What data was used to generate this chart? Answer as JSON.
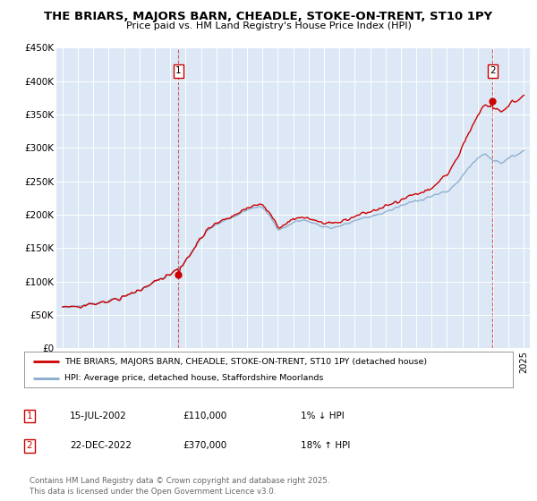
{
  "title_line1": "THE BRIARS, MAJORS BARN, CHEADLE, STOKE-ON-TRENT, ST10 1PY",
  "title_line2": "Price paid vs. HM Land Registry's House Price Index (HPI)",
  "bg_color": "#dce8f5",
  "sale1_x": 2002.542,
  "sale1_price": 110000,
  "sale2_x": 2022.958,
  "sale2_price": 370000,
  "ylabel_ticks": [
    "£0",
    "£50K",
    "£100K",
    "£150K",
    "£200K",
    "£250K",
    "£300K",
    "£350K",
    "£400K",
    "£450K"
  ],
  "ylabel_values": [
    0,
    50000,
    100000,
    150000,
    200000,
    250000,
    300000,
    350000,
    400000,
    450000
  ],
  "red_color": "#cc0000",
  "blue_color": "#88aacc",
  "legend_label1": "THE BRIARS, MAJORS BARN, CHEADLE, STOKE-ON-TRENT, ST10 1PY (detached house)",
  "legend_label2": "HPI: Average price, detached house, Staffordshire Moorlands",
  "footer": "Contains HM Land Registry data © Crown copyright and database right 2025.\nThis data is licensed under the Open Government Licence v3.0.",
  "annotation1_date": "15-JUL-2002",
  "annotation1_price": "£110,000",
  "annotation1_pct": "1% ↓ HPI",
  "annotation2_date": "22-DEC-2022",
  "annotation2_price": "£370,000",
  "annotation2_pct": "18% ↑ HPI"
}
